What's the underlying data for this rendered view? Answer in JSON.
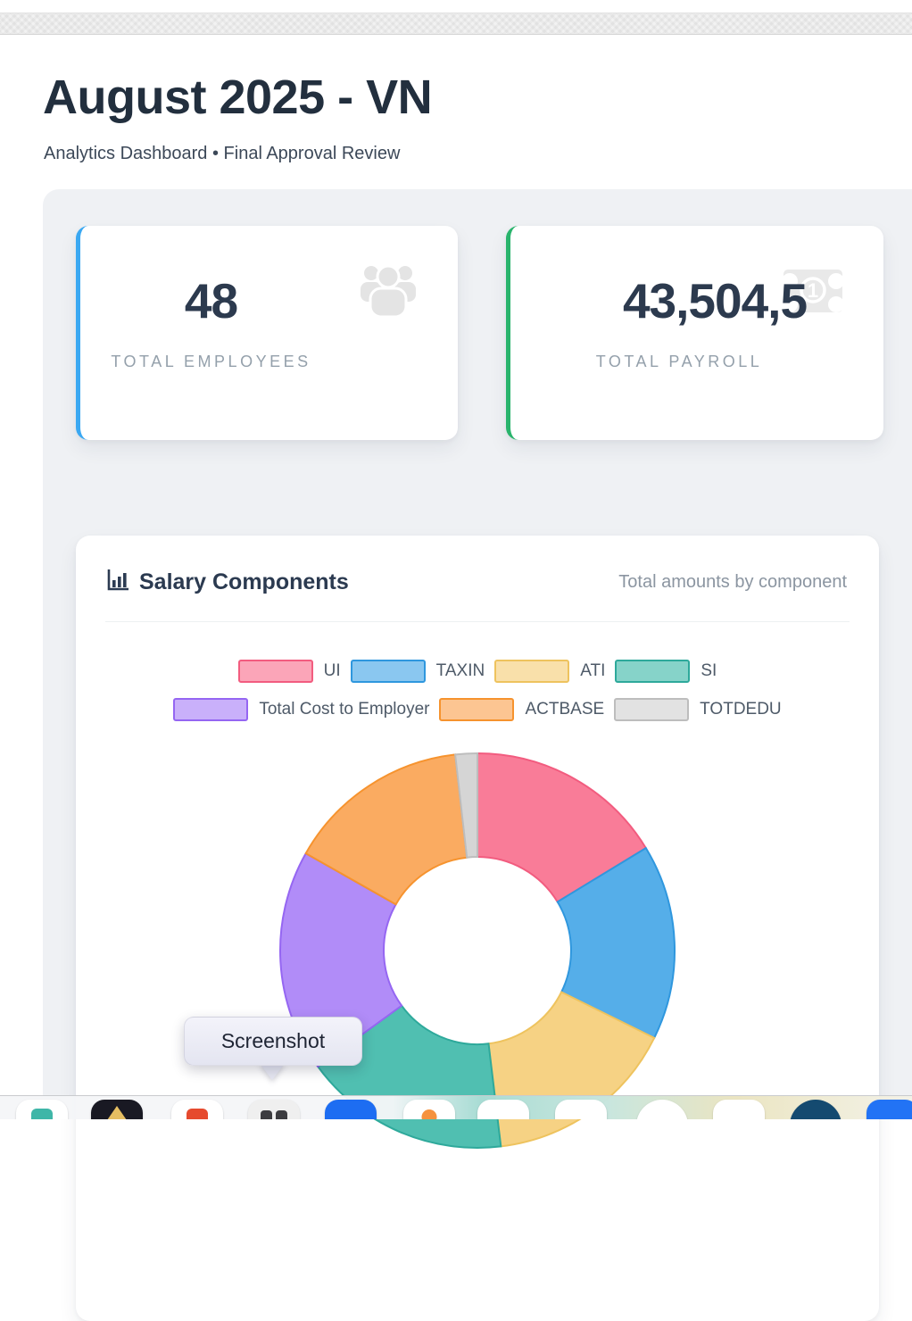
{
  "header": {
    "title": "August 2025 - VN",
    "subtitle": "Analytics Dashboard • Final Approval Review"
  },
  "stats": [
    {
      "value": "48",
      "label": "TOTAL EMPLOYEES",
      "accent": "#3aa8f2",
      "icon": "people-icon"
    },
    {
      "value": "43,504,5",
      "label": "TOTAL PAYROLL",
      "accent": "#29b46c",
      "icon": "banknote-icon"
    }
  ],
  "salary_card": {
    "title": "Salary Components",
    "subtitle": "Total amounts by component",
    "icon": "bar-chart-icon"
  },
  "chart_data": {
    "type": "pie",
    "style": "doughnut",
    "cutout_ratio": 0.47,
    "title": "Salary Components",
    "legend_position": "top",
    "labels": [
      "UI",
      "TAXIN",
      "ATI",
      "SI",
      "Total Cost to Employer",
      "ACTBASE",
      "TOTDEDU"
    ],
    "values": [
      16.3,
      16.0,
      15.8,
      16.9,
      18.2,
      15.0,
      1.8
    ],
    "unit": "percent-of-donut (estimated from arc angles, amounts not labeled)",
    "colors": [
      "#F97C98",
      "#55AEE9",
      "#F6D284",
      "#50BFB1",
      "#B18CF8",
      "#FAAB61",
      "#D5D5D5"
    ],
    "border_colors": [
      "#F25C7F",
      "#2F97DE",
      "#EEC35E",
      "#2EA99B",
      "#9566F2",
      "#F6932E",
      "#BDBDBD"
    ]
  },
  "tooltip": {
    "text": "Screenshot"
  },
  "dock": {
    "items": [
      {
        "name": "dock-app-teal",
        "bg": "#ffffff",
        "shape": "squircle",
        "inner": "#3fb6a8",
        "innerShape": "blob"
      },
      {
        "name": "dock-app-dark-gold",
        "bg": "#191923",
        "shape": "squircle",
        "inner": "#e5be62",
        "innerShape": "triangle"
      },
      {
        "name": "dock-app-red",
        "bg": "#ffffff",
        "shape": "squircle",
        "inner": "#e64a2e",
        "innerShape": "blob"
      },
      {
        "name": "dock-app-gray-keys",
        "bg": "#efefef",
        "shape": "squircle",
        "inner": "#3c3c40",
        "innerShape": "keys"
      },
      {
        "name": "dock-app-blue",
        "bg": "#1d6df2",
        "shape": "squircle"
      },
      {
        "name": "dock-app-orange-dot",
        "bg": "#ffffff",
        "shape": "squircle",
        "inner": "#f5923e",
        "innerShape": "dot"
      },
      {
        "name": "dock-app-white-1",
        "bg": "#ffffff",
        "shape": "squircle"
      },
      {
        "name": "dock-app-white-2",
        "bg": "#ffffff",
        "shape": "squircle"
      },
      {
        "name": "dock-app-white-round",
        "bg": "#ffffff",
        "shape": "circle"
      },
      {
        "name": "dock-app-white-3",
        "bg": "#ffffff",
        "shape": "squircle"
      },
      {
        "name": "dock-app-navy-round",
        "bg": "#144a70",
        "shape": "circle"
      },
      {
        "name": "dock-app-blue-2",
        "bg": "#2273f5",
        "shape": "squircle"
      }
    ],
    "centers": [
      47,
      131,
      221,
      307,
      393,
      481,
      564,
      651,
      742,
      828,
      914,
      1000
    ]
  }
}
